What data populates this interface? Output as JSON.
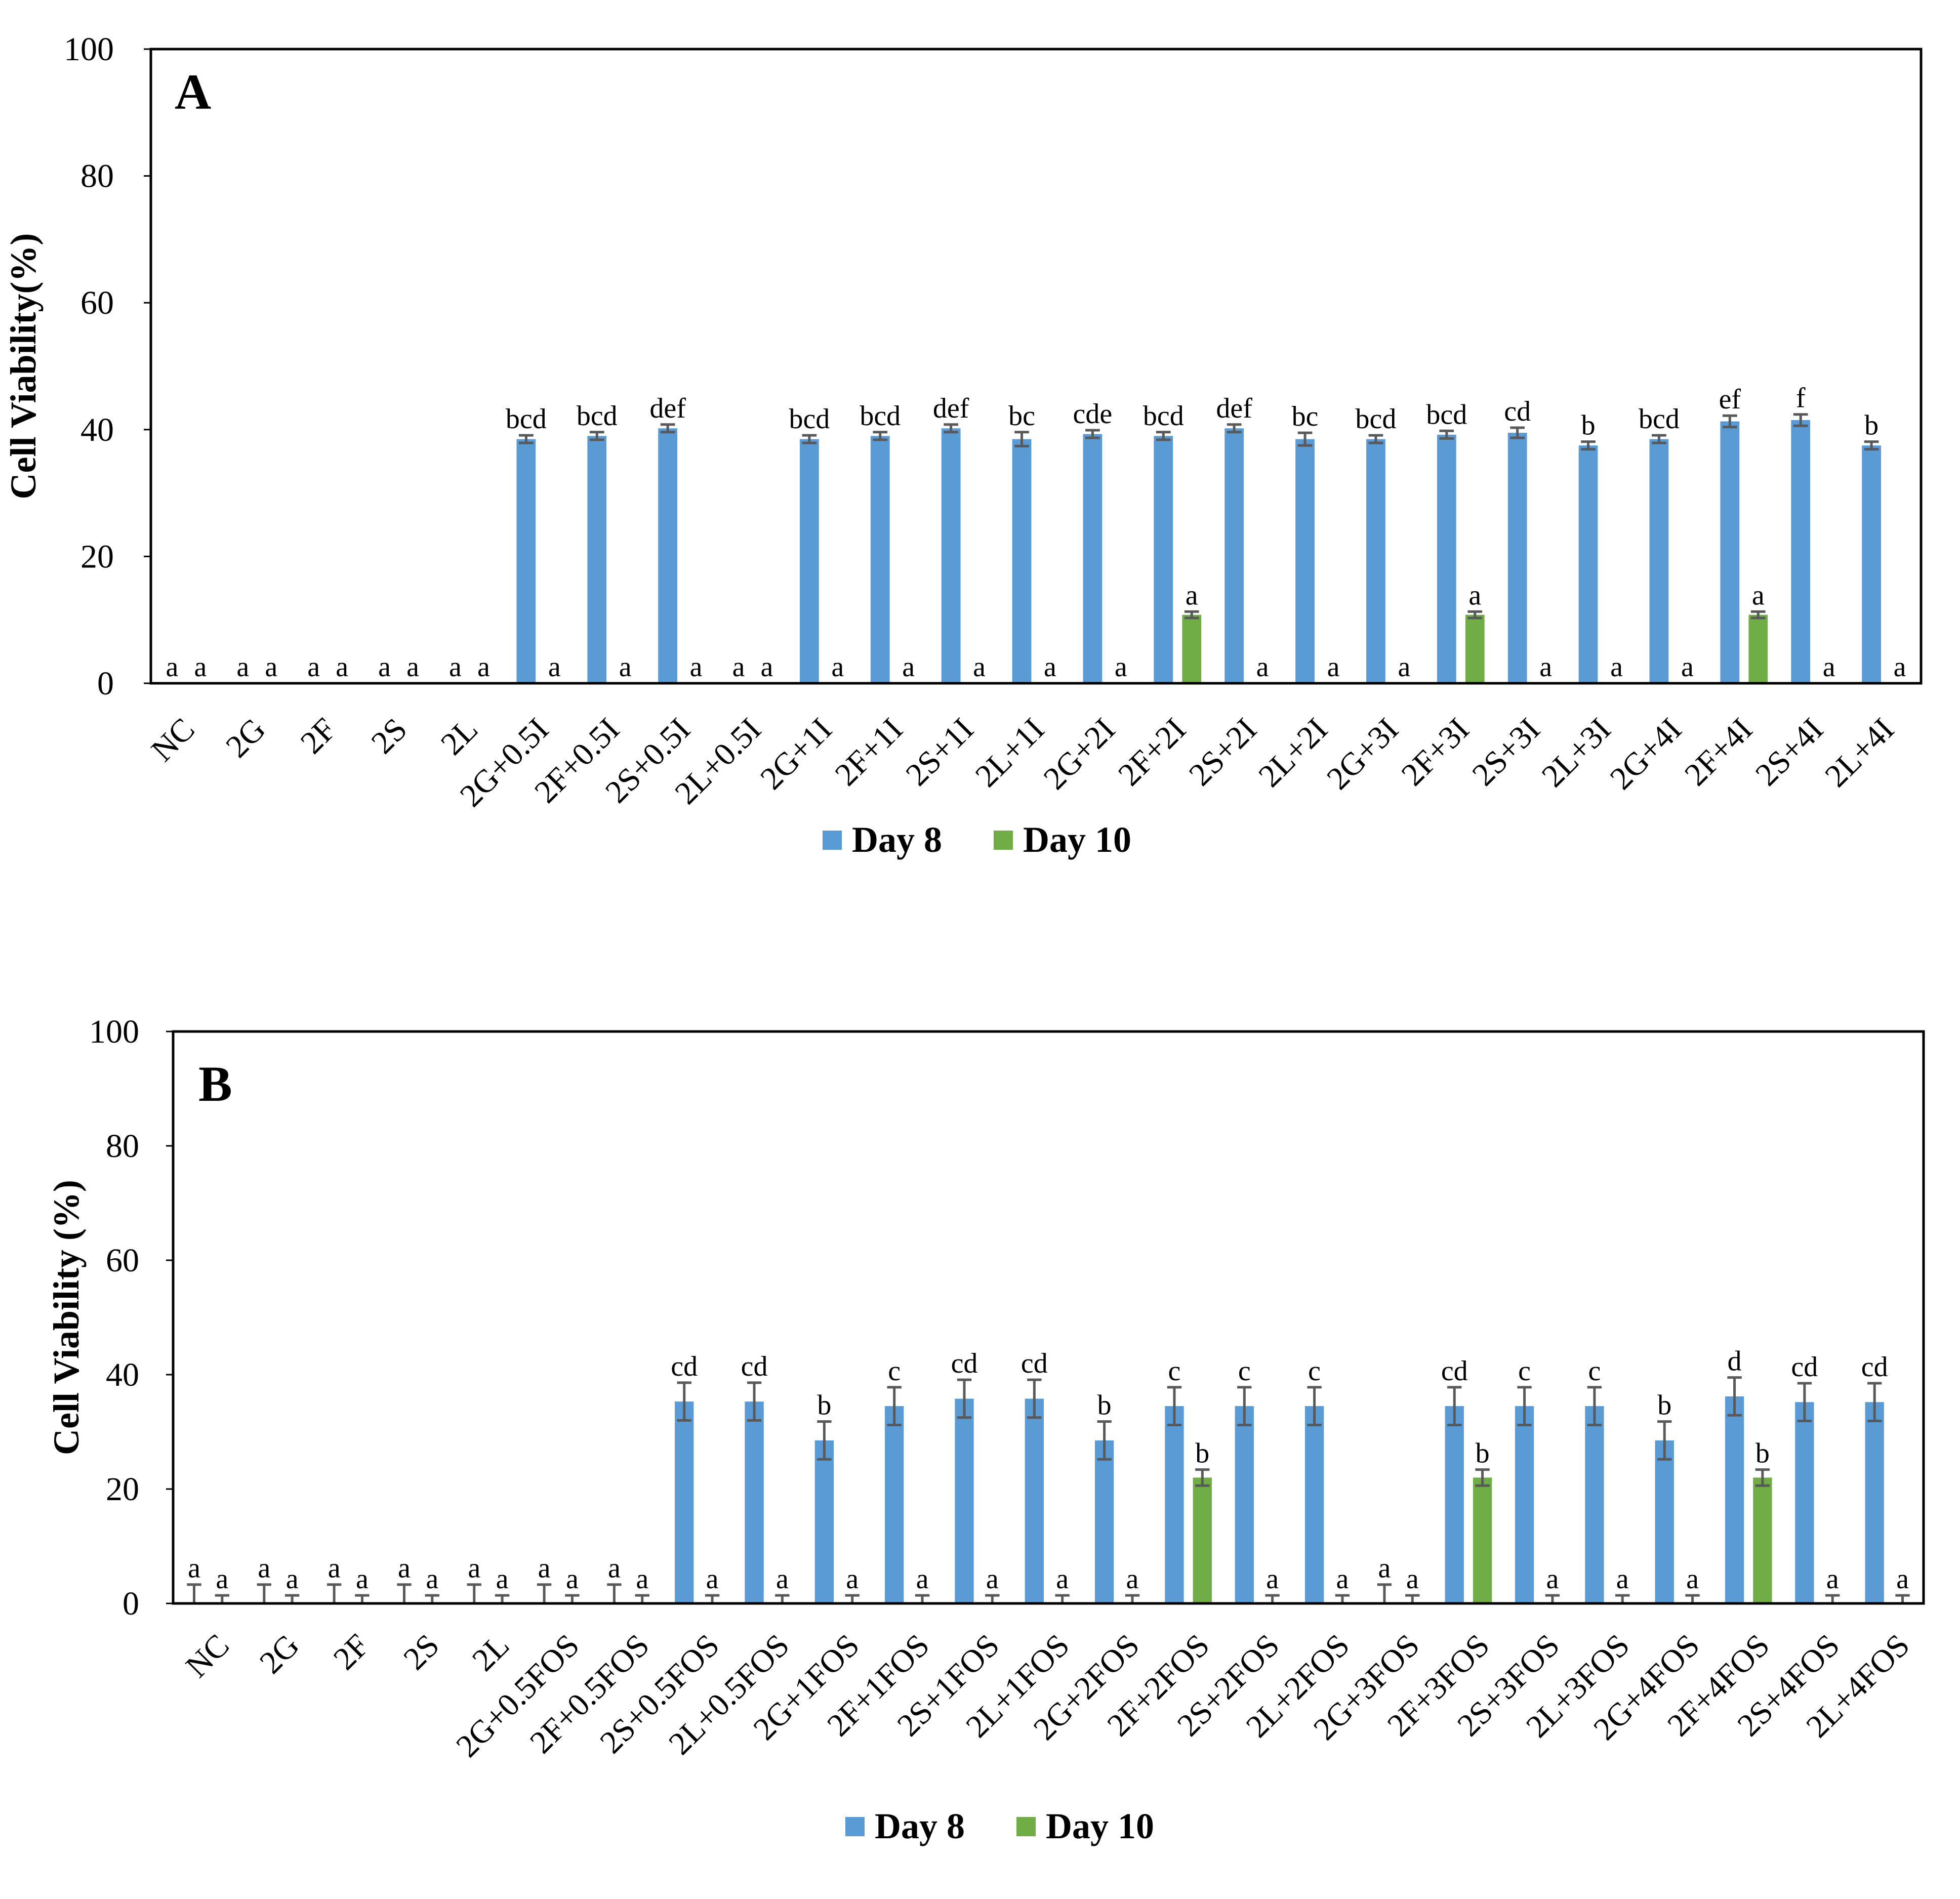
{
  "chart_data": [
    {
      "type": "bar",
      "panel_label": "A",
      "ylabel": "Cell Viability(%)",
      "ylim": [
        0,
        100
      ],
      "yticks": [
        "0",
        "20",
        "40",
        "60",
        "80",
        "100"
      ],
      "categories": [
        "NC",
        "2G",
        "2F",
        "2S",
        "2L",
        "2G+0.5I",
        "2F+0.5I",
        "2S+0.5I",
        "2L+0.5I",
        "2G+1I",
        "2F+1I",
        "2S+1I",
        "2L+1I",
        "2G+2I",
        "2F+2I",
        "2S+2I",
        "2L+2I",
        "2G+3I",
        "2F+3I",
        "2S+3I",
        "2L+3I",
        "2G+4I",
        "2F+4I",
        "2S+4I",
        "2L+4I"
      ],
      "series": [
        {
          "name": "Day 8",
          "color": "#5B9BD5",
          "values": [
            0,
            0,
            0,
            0,
            0,
            38.5,
            39,
            40.2,
            0,
            38.5,
            39,
            40.2,
            38.5,
            39.3,
            39,
            40.2,
            38.5,
            38.5,
            39.2,
            39.5,
            37.5,
            38.5,
            41.3,
            41.5,
            37.5
          ],
          "errors": [
            0,
            0,
            0,
            0,
            0,
            0.6,
            0.6,
            0.6,
            0,
            0.6,
            0.6,
            0.6,
            1.1,
            0.6,
            0.6,
            0.6,
            1.0,
            0.6,
            0.6,
            0.8,
            0.6,
            0.6,
            0.9,
            0.9,
            0.6
          ],
          "letters": [
            "a",
            "a",
            "a",
            "a",
            "a",
            "bcd",
            "bcd",
            "def",
            "a",
            "bcd",
            "bcd",
            "def",
            "bc",
            "cde",
            "bcd",
            "def",
            "bc",
            "bcd",
            "bcd",
            "cd",
            "b",
            "bcd",
            "ef",
            "f",
            "b"
          ]
        },
        {
          "name": "Day 10",
          "color": "#70AD47",
          "values": [
            0,
            0,
            0,
            0,
            0,
            0,
            0,
            0,
            0,
            0,
            0,
            0,
            0,
            0,
            10.8,
            0,
            0,
            0,
            10.8,
            0,
            0,
            0,
            10.8,
            0,
            0
          ],
          "errors": [
            0,
            0,
            0,
            0,
            0,
            0,
            0,
            0,
            0,
            0,
            0,
            0,
            0,
            0,
            0.5,
            0,
            0,
            0,
            0.5,
            0,
            0,
            0,
            0.5,
            0,
            0
          ],
          "letters": [
            "a",
            "a",
            "a",
            "a",
            "a",
            "a",
            "a",
            "a",
            "a",
            "a",
            "a",
            "a",
            "a",
            "a",
            "a",
            "a",
            "a",
            "a",
            "a",
            "a",
            "a",
            "a",
            "a",
            "a",
            "a"
          ]
        }
      ],
      "legend": [
        "Day 8",
        "Day 10"
      ]
    },
    {
      "type": "bar",
      "panel_label": "B",
      "ylabel": "Cell Viability (%)",
      "ylim": [
        0,
        100
      ],
      "yticks": [
        "0",
        "20",
        "40",
        "60",
        "80",
        "100"
      ],
      "categories": [
        "NC",
        "2G",
        "2F",
        "2S",
        "2L",
        "2G+0.5FOS",
        "2F+0.5FOS",
        "2S+0.5FOS",
        "2L+0.5FOS",
        "2G+1FOS",
        "2F+1FOS",
        "2S+1FOS",
        "2L+1FOS",
        "2G+2FOS",
        "2F+2FOS",
        "2S+2FOS",
        "2L+2FOS",
        "2G+3FOS",
        "2F+3FOS",
        "2S+3FOS",
        "2L+3FOS",
        "2G+4FOS",
        "2F+4FOS",
        "2S+4FOS",
        "2L+4FOS"
      ],
      "series": [
        {
          "name": "Day 8",
          "color": "#5B9BD5",
          "values": [
            0,
            0,
            0,
            0,
            0,
            0,
            0,
            35.3,
            35.3,
            28.5,
            34.5,
            35.8,
            35.8,
            28.5,
            34.5,
            34.5,
            34.5,
            0,
            34.5,
            34.5,
            34.5,
            28.5,
            36.2,
            35.2,
            35.2
          ],
          "errors": [
            3.3,
            3.3,
            3.3,
            3.3,
            3.3,
            3.3,
            3.3,
            3.3,
            3.3,
            3.3,
            3.3,
            3.3,
            3.3,
            3.3,
            3.3,
            3.3,
            3.3,
            3.3,
            3.3,
            3.3,
            3.3,
            3.3,
            3.3,
            3.3,
            3.3
          ],
          "letters": [
            "a",
            "a",
            "a",
            "a",
            "a",
            "a",
            "a",
            "cd",
            "cd",
            "b",
            "c",
            "cd",
            "cd",
            "b",
            "c",
            "c",
            "c",
            "a",
            "cd",
            "c",
            "c",
            "b",
            "d",
            "cd",
            "cd"
          ]
        },
        {
          "name": "Day 10",
          "color": "#70AD47",
          "values": [
            0,
            0,
            0,
            0,
            0,
            0,
            0,
            0,
            0,
            0,
            0,
            0,
            0,
            0,
            22,
            0,
            0,
            0,
            22,
            0,
            0,
            0,
            22,
            0,
            0
          ],
          "errors": [
            1.4,
            1.4,
            1.4,
            1.4,
            1.4,
            1.4,
            1.4,
            1.4,
            1.4,
            1.4,
            1.4,
            1.4,
            1.4,
            1.4,
            1.4,
            1.4,
            1.4,
            1.4,
            1.4,
            1.4,
            1.4,
            1.4,
            1.4,
            1.4,
            1.4
          ],
          "letters": [
            "a",
            "a",
            "a",
            "a",
            "a",
            "a",
            "a",
            "a",
            "a",
            "a",
            "a",
            "a",
            "a",
            "a",
            "b",
            "a",
            "a",
            "a",
            "b",
            "a",
            "a",
            "a",
            "b",
            "a",
            "a"
          ]
        }
      ],
      "legend": [
        "Day 8",
        "Day 10"
      ]
    }
  ]
}
